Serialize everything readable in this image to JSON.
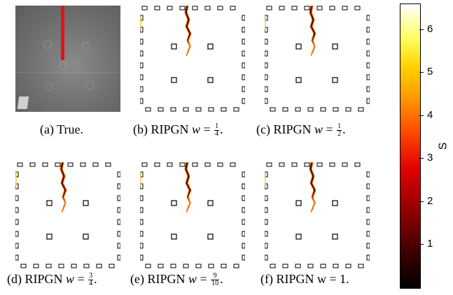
{
  "figure": {
    "panels": [
      {
        "id": "a",
        "caption": "(a) True.",
        "kind": "photo"
      },
      {
        "id": "b",
        "caption_prefix": "(b) RIPGN ",
        "w_num": "1",
        "w_den": "4",
        "kind": "sim"
      },
      {
        "id": "c",
        "caption_prefix": "(c) RIPGN ",
        "w_num": "1",
        "w_den": "2",
        "kind": "sim"
      },
      {
        "id": "d",
        "caption_prefix": "(d) RIPGN ",
        "w_num": "3",
        "w_den": "4",
        "kind": "sim"
      },
      {
        "id": "e",
        "caption_prefix": "(e) RIPGN ",
        "w_num": "9",
        "w_den": "10",
        "kind": "sim"
      },
      {
        "id": "f",
        "caption": "(f) RIPGN w = 1.",
        "kind": "sim"
      }
    ],
    "w_symbol": "w",
    "equals": " = ",
    "period": ".",
    "colorbar": {
      "label": "S",
      "ticks": [
        "1",
        "2",
        "3",
        "4",
        "5",
        "6"
      ],
      "colormap": "hot"
    }
  }
}
